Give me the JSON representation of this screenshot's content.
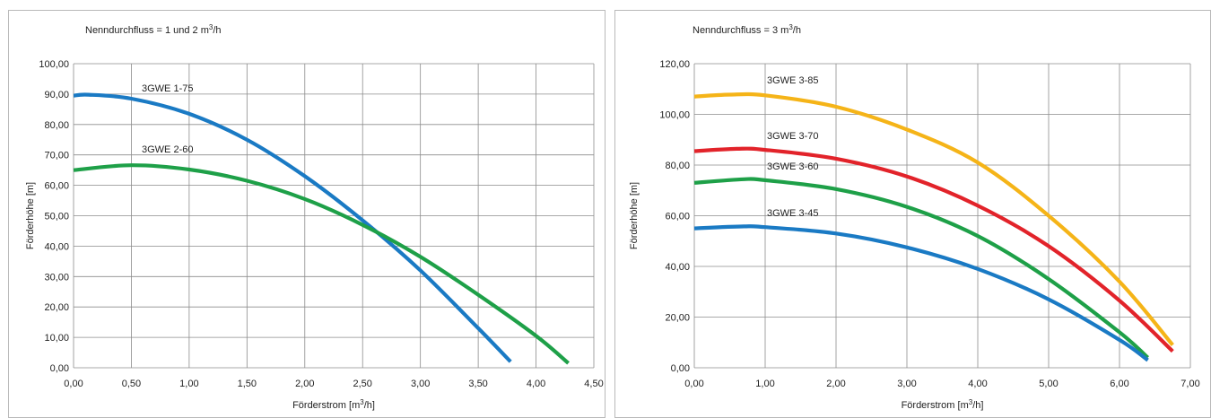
{
  "chart_data": [
    {
      "type": "line",
      "title": "Nenndurchfluss = 1 und 2 m³/h",
      "xlabel": "Förderstrom [m³/h]",
      "ylabel": "Förderhöhe [m]",
      "xlim": [
        0,
        4.5
      ],
      "ylim": [
        0,
        100
      ],
      "xticks": [
        "0,00",
        "0,50",
        "1,00",
        "1,50",
        "2,00",
        "2,50",
        "3,00",
        "3,50",
        "4,00",
        "4,50"
      ],
      "yticks": [
        "0,00",
        "10,00",
        "20,00",
        "30,00",
        "40,00",
        "50,00",
        "60,00",
        "70,00",
        "80,00",
        "90,00",
        "100,00"
      ],
      "grid": true,
      "series": [
        {
          "name": "3GWE 1-75",
          "color": "#1a7ac4",
          "x": [
            0.0,
            0.13,
            0.5,
            1.0,
            1.5,
            2.0,
            2.5,
            3.0,
            3.5,
            3.78
          ],
          "y": [
            89.5,
            89.8,
            88.5,
            83.5,
            75.0,
            63.0,
            48.5,
            32.0,
            13.0,
            2.0
          ]
        },
        {
          "name": "3GWE 2-60",
          "color": "#1ea048",
          "x": [
            0.0,
            0.5,
            1.0,
            1.5,
            2.0,
            2.5,
            3.0,
            3.5,
            4.0,
            4.28
          ],
          "y": [
            65.0,
            66.6,
            65.2,
            61.5,
            55.5,
            47.0,
            36.5,
            24.0,
            10.5,
            1.5
          ]
        }
      ]
    },
    {
      "type": "line",
      "title": "Nenndurchfluss = 3 m³/h",
      "xlabel": "Förderstrom [m³/h]",
      "ylabel": "Förderhöhe [m]",
      "xlim": [
        0,
        7
      ],
      "ylim": [
        0,
        120
      ],
      "xticks": [
        "0,00",
        "1,00",
        "2,00",
        "3,00",
        "4,00",
        "5,00",
        "6,00",
        "7,00"
      ],
      "yticks": [
        "0,00",
        "20,00",
        "40,00",
        "60,00",
        "80,00",
        "100,00",
        "120,00"
      ],
      "grid": true,
      "series": [
        {
          "name": "3GWE 3-85",
          "color": "#f5b418",
          "x": [
            0.0,
            0.5,
            1.0,
            2.0,
            3.0,
            4.0,
            5.0,
            6.0,
            6.75
          ],
          "y": [
            107.0,
            107.8,
            107.5,
            103.0,
            94.0,
            81.0,
            60.0,
            34.0,
            9.0
          ]
        },
        {
          "name": "3GWE 3-70",
          "color": "#e2232a",
          "x": [
            0.0,
            0.6,
            1.0,
            2.0,
            3.0,
            4.0,
            5.0,
            6.0,
            6.75
          ],
          "y": [
            85.5,
            86.4,
            86.0,
            82.5,
            75.5,
            64.0,
            48.0,
            26.5,
            6.5
          ]
        },
        {
          "name": "3GWE 3-60",
          "color": "#1ea048",
          "x": [
            0.0,
            0.7,
            1.0,
            2.0,
            3.0,
            4.0,
            5.0,
            6.0,
            6.4
          ],
          "y": [
            73.0,
            74.4,
            74.0,
            70.5,
            63.5,
            52.0,
            35.0,
            14.0,
            4.0
          ]
        },
        {
          "name": "3GWE 3-45",
          "color": "#1a7ac4",
          "x": [
            0.0,
            0.7,
            1.0,
            2.0,
            3.0,
            4.0,
            5.0,
            6.0,
            6.4
          ],
          "y": [
            55.0,
            55.8,
            55.5,
            53.0,
            47.5,
            39.0,
            27.0,
            11.0,
            3.0
          ]
        }
      ]
    }
  ]
}
